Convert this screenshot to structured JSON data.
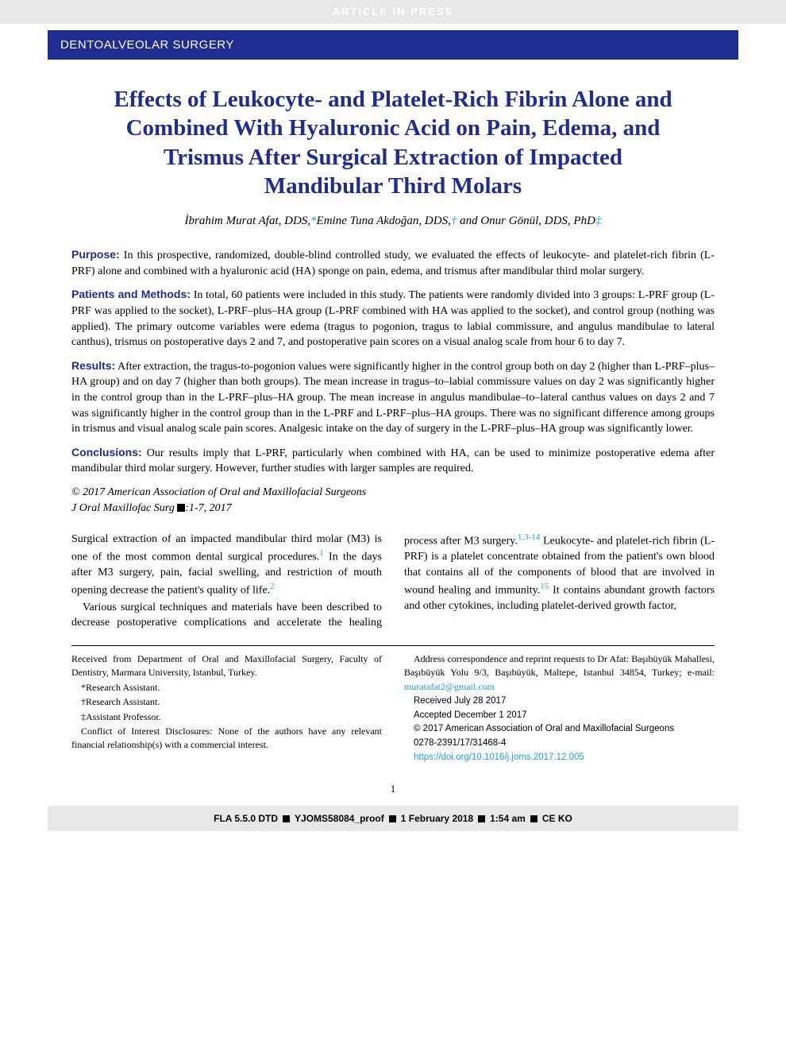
{
  "banner": {
    "inpress": "ARTICLE IN PRESS",
    "category": "DENTOALVEOLAR SURGERY"
  },
  "title": "Effects of Leukocyte- and Platelet-Rich Fibrin Alone and Combined With Hyaluronic Acid on Pain, Edema, and Trismus After Surgical Extraction of Impacted Mandibular Third Molars",
  "authors": {
    "a1_name": "İbrahim Murat Afat, DDS,",
    "a1_aff": "*",
    "a2_name": "Emine Tuna Akdoğan, DDS,",
    "a2_aff": "†",
    "a3_prefix": " and ",
    "a3_name": "Onur Gönül, DDS, PhD",
    "a3_aff": "‡"
  },
  "abstract": {
    "purpose_label": "Purpose:",
    "purpose": " In this prospective, randomized, double-blind controlled study, we evaluated the effects of leukocyte- and platelet-rich fibrin (L-PRF) alone and combined with a hyaluronic acid (HA) sponge on pain, edema, and trismus after mandibular third molar surgery.",
    "methods_label": "Patients and Methods:",
    "methods": " In total, 60 patients were included in this study. The patients were randomly divided into 3 groups: L-PRF group (L-PRF was applied to the socket), L-PRF–plus–HA group (L-PRF combined with HA was applied to the socket), and control group (nothing was applied). The primary outcome variables were edema (tragus to pogonion, tragus to labial commissure, and angulus mandibulae to lateral canthus), trismus on postoperative days 2 and 7, and postoperative pain scores on a visual analog scale from hour 6 to day 7.",
    "results_label": "Results:",
    "results": " After extraction, the tragus-to-pogonion values were significantly higher in the control group both on day 2 (higher than L-PRF–plus–HA group) and on day 7 (higher than both groups). The mean increase in tragus–to–labial commissure values on day 2 was significantly higher in the control group than in the L-PRF–plus–HA group. The mean increase in angulus mandibulae–to–lateral canthus values on days 2 and 7 was significantly higher in the control group than in the L-PRF and L-PRF–plus–HA groups. There was no significant difference among groups in trismus and visual analog scale pain scores. Analgesic intake on the day of surgery in the L-PRF–plus–HA group was significantly lower.",
    "conclusions_label": "Conclusions:",
    "conclusions": " Our results imply that L-PRF, particularly when combined with HA, can be used to minimize postoperative edema after mandibular third molar surgery. However, further studies with larger samples are required.",
    "copyright": "© 2017 American Association of Oral and Maxillofacial Surgeons",
    "journal_prefix": "J Oral Maxillofac Surg ",
    "journal_suffix": ":1-7, 2017"
  },
  "body": {
    "p1a": "Surgical extraction of an impacted mandibular third molar (M3) is one of the most common dental surgical procedures.",
    "ref1": "1",
    "p1b": " In the days after M3 surgery, pain, facial swelling, and restriction of mouth opening decrease the patient's quality of life.",
    "ref2": "2",
    "p2a": "Various surgical techniques and materials have been described to decrease postoperative complications and accelerate the healing process after M3 surgery.",
    "ref3": "1,3-14",
    "p2b": " Leukocyte- and platelet-rich fibrin (L-PRF) is a platelet concentrate obtained from the patient's own blood that contains all of the components of blood that are involved in wound healing and immunity.",
    "ref4": "15",
    "p2c": " It contains abundant growth factors and other cytokines, including platelet-derived growth factor,"
  },
  "footnotes": {
    "received_from": "Received from Department of Oral and Maxillofacial Surgery, Faculty of Dentistry, Marmara University, Istanbul, Turkey.",
    "aff1": "*Research Assistant.",
    "aff2": "†Research Assistant.",
    "aff3": "‡Assistant Professor.",
    "coi": "Conflict of Interest Disclosures: None of the authors have any relevant financial relationship(s) with a commercial interest.",
    "address1": "Address correspondence and reprint requests to Dr Afat: Başıbüyük Mahallesi, Başıbüyük Yolu 9/3, Başıbüyük, Maltepe, Istanbul 34854, Turkey; e-mail: ",
    "email": "muratafat2@gmail.com",
    "received": "Received July 28 2017",
    "accepted": "Accepted December 1 2017",
    "copyright_foot": "© 2017 American Association of Oral and Maxillofacial Surgeons",
    "issn": "0278-2391/17/31468-4",
    "doi": "https://doi.org/10.1016/j.joms.2017.12.005"
  },
  "page_number": "1",
  "footer": {
    "fla": "FLA 5.5.0 DTD",
    "proof": "YJOMS58084_proof",
    "date": "1 February 2018",
    "time": "1:54 am",
    "ce": "CE KO"
  },
  "colors": {
    "brand_blue": "#1e2d8f",
    "link_blue": "#1e9fd8",
    "grey_bar": "#e8e8e8"
  }
}
